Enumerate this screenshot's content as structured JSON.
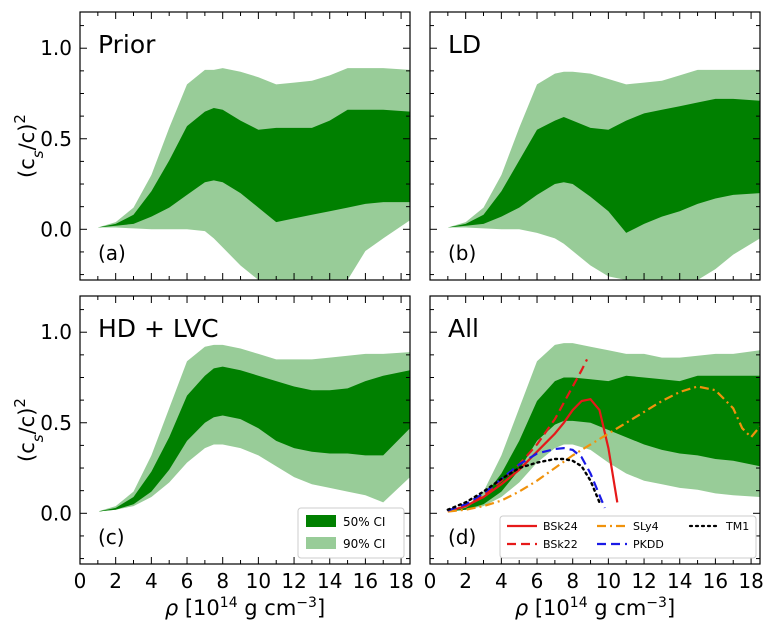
{
  "figure": {
    "ylabel": "(c_s/c)^2",
    "xlabel": "ρ [10^14 g cm^-3]"
  },
  "colors": {
    "ci50": "#008000",
    "ci90": "#98cc98",
    "BSk24": "#e61919",
    "BSk22": "#e61919",
    "SLy4": "#f0920c",
    "PKDD": "#1a1ae6",
    "TM1": "#000000"
  },
  "chart_data": [
    {
      "type": "area",
      "title": "Prior",
      "panel_letter": "(a)",
      "xlim": [
        0,
        18.5
      ],
      "ylim": [
        -0.28,
        1.2
      ],
      "x": [
        1,
        2,
        3,
        4,
        5,
        6,
        7,
        7.5,
        8,
        9,
        10,
        11,
        12,
        13,
        14,
        15,
        16,
        17,
        18.5
      ],
      "ci90_upper": [
        0.01,
        0.04,
        0.12,
        0.3,
        0.56,
        0.8,
        0.88,
        0.88,
        0.89,
        0.87,
        0.84,
        0.8,
        0.81,
        0.82,
        0.85,
        0.89,
        0.89,
        0.89,
        0.88
      ],
      "ci50_upper": [
        0.01,
        0.03,
        0.08,
        0.21,
        0.38,
        0.57,
        0.65,
        0.67,
        0.66,
        0.6,
        0.55,
        0.56,
        0.56,
        0.56,
        0.6,
        0.66,
        0.66,
        0.66,
        0.65
      ],
      "ci50_lower": [
        0.01,
        0.02,
        0.03,
        0.07,
        0.12,
        0.19,
        0.26,
        0.27,
        0.26,
        0.2,
        0.12,
        0.04,
        0.06,
        0.08,
        0.1,
        0.12,
        0.14,
        0.15,
        0.15
      ],
      "ci90_lower": [
        0.01,
        0.01,
        0.005,
        0.0,
        0.0,
        0.0,
        -0.01,
        -0.05,
        -0.1,
        -0.2,
        -0.28,
        -0.28,
        -0.28,
        -0.28,
        -0.28,
        -0.28,
        -0.12,
        -0.05,
        0.05
      ]
    },
    {
      "type": "area",
      "title": "LD",
      "panel_letter": "(b)",
      "xlim": [
        0,
        18.5
      ],
      "ylim": [
        -0.28,
        1.2
      ],
      "x": [
        1,
        2,
        3,
        4,
        5,
        6,
        7,
        7.5,
        8,
        9,
        10,
        11,
        12,
        13,
        14,
        15,
        16,
        17,
        18.5
      ],
      "ci90_upper": [
        0.01,
        0.04,
        0.12,
        0.3,
        0.56,
        0.8,
        0.86,
        0.87,
        0.87,
        0.86,
        0.83,
        0.8,
        0.81,
        0.82,
        0.85,
        0.88,
        0.88,
        0.88,
        0.88
      ],
      "ci50_upper": [
        0.01,
        0.03,
        0.08,
        0.21,
        0.38,
        0.55,
        0.6,
        0.62,
        0.6,
        0.56,
        0.55,
        0.6,
        0.64,
        0.66,
        0.68,
        0.7,
        0.72,
        0.72,
        0.71
      ],
      "ci50_lower": [
        0.01,
        0.02,
        0.03,
        0.07,
        0.12,
        0.19,
        0.25,
        0.26,
        0.25,
        0.18,
        0.1,
        -0.02,
        0.03,
        0.07,
        0.1,
        0.14,
        0.17,
        0.19,
        0.2
      ],
      "ci90_lower": [
        0.01,
        0.01,
        0.005,
        0.0,
        0.0,
        -0.02,
        -0.05,
        -0.08,
        -0.12,
        -0.2,
        -0.26,
        -0.28,
        -0.28,
        -0.28,
        -0.28,
        -0.28,
        -0.22,
        -0.14,
        -0.05
      ]
    },
    {
      "type": "area",
      "title": "HD + LVC",
      "panel_letter": "(c)",
      "xlim": [
        0,
        18.5
      ],
      "ylim": [
        -0.28,
        1.2
      ],
      "x": [
        1,
        2,
        3,
        4,
        5,
        6,
        7,
        7.5,
        8,
        9,
        10,
        11,
        12,
        13,
        14,
        15,
        16,
        17,
        18.5
      ],
      "ci90_upper": [
        0.01,
        0.04,
        0.12,
        0.32,
        0.58,
        0.84,
        0.92,
        0.93,
        0.93,
        0.91,
        0.88,
        0.85,
        0.85,
        0.85,
        0.86,
        0.87,
        0.88,
        0.88,
        0.89
      ],
      "ci50_upper": [
        0.01,
        0.03,
        0.09,
        0.23,
        0.42,
        0.65,
        0.76,
        0.8,
        0.81,
        0.79,
        0.76,
        0.73,
        0.7,
        0.68,
        0.68,
        0.69,
        0.73,
        0.76,
        0.79
      ],
      "ci50_lower": [
        0.01,
        0.02,
        0.05,
        0.12,
        0.24,
        0.4,
        0.5,
        0.53,
        0.54,
        0.52,
        0.47,
        0.4,
        0.36,
        0.34,
        0.33,
        0.33,
        0.32,
        0.32,
        0.47
      ],
      "ci90_lower": [
        0.01,
        0.02,
        0.04,
        0.09,
        0.17,
        0.28,
        0.36,
        0.38,
        0.38,
        0.36,
        0.32,
        0.26,
        0.2,
        0.16,
        0.14,
        0.12,
        0.1,
        0.06,
        0.2
      ]
    },
    {
      "type": "area",
      "title": "All",
      "panel_letter": "(d)",
      "xlim": [
        0,
        18.5
      ],
      "ylim": [
        -0.28,
        1.2
      ],
      "x": [
        1,
        2,
        3,
        4,
        5,
        6,
        7,
        7.5,
        8,
        9,
        10,
        11,
        12,
        13,
        14,
        15,
        16,
        17,
        18.5
      ],
      "ci90_upper": [
        0.01,
        0.04,
        0.12,
        0.32,
        0.58,
        0.84,
        0.93,
        0.94,
        0.94,
        0.92,
        0.9,
        0.88,
        0.88,
        0.86,
        0.86,
        0.87,
        0.88,
        0.88,
        0.9
      ],
      "ci50_upper": [
        0.01,
        0.03,
        0.09,
        0.22,
        0.4,
        0.62,
        0.73,
        0.75,
        0.75,
        0.74,
        0.73,
        0.76,
        0.75,
        0.74,
        0.73,
        0.76,
        0.76,
        0.76,
        0.76
      ],
      "ci50_lower": [
        0.01,
        0.02,
        0.05,
        0.12,
        0.24,
        0.4,
        0.49,
        0.51,
        0.51,
        0.5,
        0.46,
        0.42,
        0.38,
        0.35,
        0.33,
        0.32,
        0.3,
        0.29,
        0.26
      ],
      "ci90_lower": [
        0.01,
        0.02,
        0.04,
        0.09,
        0.17,
        0.28,
        0.36,
        0.38,
        0.38,
        0.35,
        0.28,
        0.22,
        0.18,
        0.16,
        0.14,
        0.13,
        0.11,
        0.1,
        0.09
      ],
      "eos_curves": [
        {
          "name": "BSk24",
          "style": "solid",
          "x": [
            1,
            2,
            3,
            4,
            5,
            6,
            7,
            7.5,
            8,
            8.5,
            9,
            9.5,
            10,
            10.5
          ],
          "y": [
            0.01,
            0.04,
            0.09,
            0.16,
            0.24,
            0.34,
            0.44,
            0.5,
            0.57,
            0.62,
            0.63,
            0.57,
            0.36,
            0.06
          ]
        },
        {
          "name": "BSk22",
          "style": "dashed",
          "x": [
            1,
            2,
            3,
            4,
            5,
            6,
            7,
            7.5,
            8,
            8.5,
            8.8
          ],
          "y": [
            0.01,
            0.04,
            0.1,
            0.18,
            0.27,
            0.38,
            0.52,
            0.61,
            0.7,
            0.79,
            0.85
          ]
        },
        {
          "name": "SLy4",
          "style": "dashdot",
          "x": [
            1,
            2,
            3,
            4,
            5,
            6,
            7,
            8,
            9,
            10,
            11,
            12,
            13,
            14,
            15,
            16,
            17,
            17.5,
            18,
            18.5
          ],
          "y": [
            0.01,
            0.02,
            0.04,
            0.07,
            0.12,
            0.18,
            0.25,
            0.32,
            0.38,
            0.44,
            0.5,
            0.56,
            0.62,
            0.67,
            0.7,
            0.68,
            0.58,
            0.47,
            0.42,
            0.48
          ]
        },
        {
          "name": "PKDD",
          "style": "dashed",
          "x": [
            1,
            2,
            3,
            4,
            5,
            6,
            7,
            7.5,
            8,
            8.5,
            9,
            9.5,
            9.8
          ],
          "y": [
            0.015,
            0.05,
            0.11,
            0.19,
            0.27,
            0.33,
            0.355,
            0.36,
            0.35,
            0.31,
            0.22,
            0.1,
            0.03
          ]
        },
        {
          "name": "TM1",
          "style": "dotted",
          "x": [
            1,
            2,
            3,
            4,
            5,
            6,
            7,
            7.5,
            8,
            8.5,
            9,
            9.5
          ],
          "y": [
            0.02,
            0.06,
            0.12,
            0.19,
            0.25,
            0.28,
            0.3,
            0.3,
            0.29,
            0.26,
            0.18,
            0.06
          ]
        }
      ],
      "legend_eos": {
        "placement": "lower-center",
        "order": [
          "BSk24",
          "SLy4",
          "TM1",
          "BSk22",
          "PKDD"
        ]
      }
    }
  ],
  "legend_ci": {
    "placement": "lower-right of panel (c)",
    "entries": [
      {
        "label": "50% CI",
        "key": "ci50"
      },
      {
        "label": "90% CI",
        "key": "ci90"
      }
    ]
  },
  "axes": {
    "xticks": [
      0,
      2,
      4,
      6,
      8,
      10,
      12,
      14,
      16,
      18
    ],
    "yticks": [
      0.0,
      0.5,
      1.0
    ],
    "ytick_labels": [
      "0.0",
      "0.5",
      "1.0"
    ]
  }
}
